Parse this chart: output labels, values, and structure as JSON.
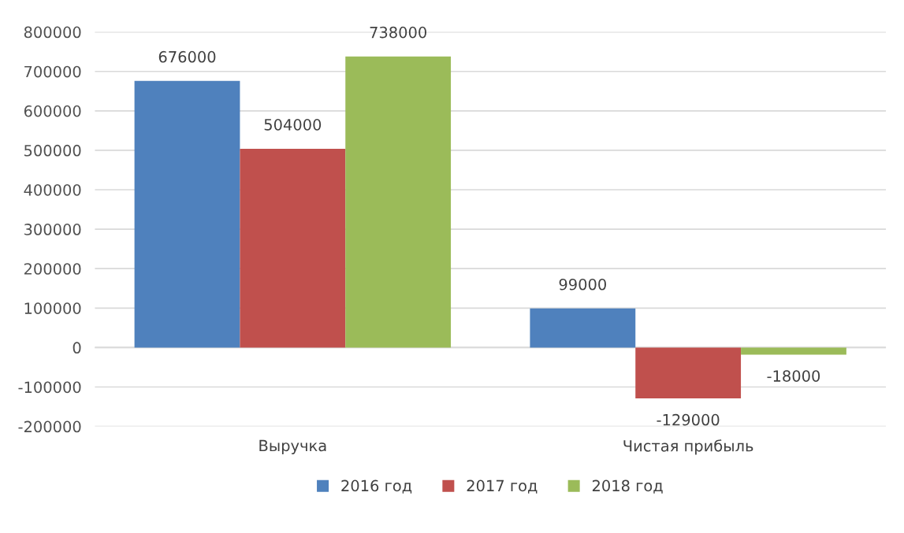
{
  "chart_data": {
    "type": "bar",
    "categories": [
      "Выручка",
      "Чистая прибыль"
    ],
    "series": [
      {
        "name": "2016 год",
        "color": "#4f81bd",
        "values": [
          676000,
          99000
        ]
      },
      {
        "name": "2017 год",
        "color": "#c0504d",
        "values": [
          504000,
          -129000
        ]
      },
      {
        "name": "2018 год",
        "color": "#9bbb59",
        "values": [
          738000,
          -18000
        ]
      }
    ],
    "ylim": [
      -200000,
      800000
    ],
    "yticks": [
      -200000,
      -100000,
      0,
      100000,
      200000,
      300000,
      400000,
      500000,
      600000,
      700000,
      800000
    ],
    "grid": "y",
    "legend": "bottom",
    "data_labels": true
  }
}
